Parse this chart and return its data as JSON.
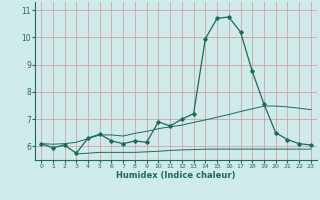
{
  "xlabel": "Humidex (Indice chaleur)",
  "background_color": "#ceeaea",
  "grid_color": "#d4a0a0",
  "line_color": "#1a6b5a",
  "x_ticks": [
    0,
    1,
    2,
    3,
    4,
    5,
    6,
    7,
    8,
    9,
    10,
    11,
    12,
    13,
    14,
    15,
    16,
    17,
    18,
    19,
    20,
    21,
    22,
    23
  ],
  "ylim": [
    5.5,
    11.3
  ],
  "xlim": [
    -0.5,
    23.5
  ],
  "yticks": [
    6,
    7,
    8,
    9,
    10,
    11
  ],
  "line1_x": [
    0,
    1,
    2,
    3,
    4,
    5,
    6,
    7,
    8,
    9,
    10,
    11,
    12,
    13,
    14,
    15,
    16,
    17,
    18,
    19,
    20,
    21,
    22,
    23
  ],
  "line1_y": [
    6.1,
    5.95,
    6.05,
    5.75,
    6.3,
    6.45,
    6.2,
    6.1,
    6.2,
    6.15,
    6.9,
    6.75,
    7.0,
    7.2,
    9.95,
    10.7,
    10.75,
    10.2,
    8.75,
    7.55,
    6.5,
    6.25,
    6.1,
    6.05
  ],
  "line2_x": [
    3,
    4,
    5,
    6,
    7,
    8,
    9,
    10,
    11,
    12,
    13,
    14,
    15,
    16,
    17,
    18,
    19,
    20,
    21,
    22,
    23
  ],
  "line2_y": [
    5.72,
    5.75,
    5.78,
    5.78,
    5.78,
    5.78,
    5.8,
    5.82,
    5.85,
    5.87,
    5.88,
    5.9,
    5.9,
    5.9,
    5.9,
    5.9,
    5.9,
    5.9,
    5.9,
    5.9,
    5.9
  ],
  "line3_x": [
    0,
    1,
    2,
    3,
    4,
    5,
    6,
    7,
    8,
    9,
    10,
    11,
    12,
    13,
    14,
    15,
    16,
    17,
    18,
    19,
    20,
    21,
    22,
    23
  ],
  "line3_y": [
    6.1,
    6.08,
    6.1,
    6.15,
    6.28,
    6.42,
    6.42,
    6.38,
    6.48,
    6.55,
    6.65,
    6.72,
    6.78,
    6.88,
    6.97,
    7.07,
    7.17,
    7.28,
    7.38,
    7.48,
    7.48,
    7.45,
    7.4,
    7.35
  ]
}
